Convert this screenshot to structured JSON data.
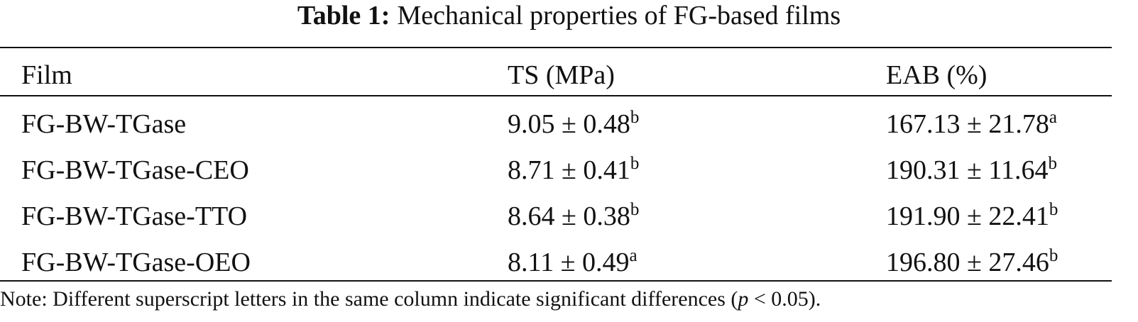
{
  "title": {
    "label": "Table 1:",
    "text": "Mechanical properties of FG-based films"
  },
  "table": {
    "header": [
      "Film",
      "TS (MPa)",
      "EAB (%)"
    ],
    "rows": [
      [
        {
          "text": "FG-BW-TGase"
        },
        {
          "text": "9.05 ± 0.48",
          "sup": "b"
        },
        {
          "text": "167.13 ± 21.78",
          "sup": "a"
        }
      ],
      [
        {
          "text": "FG-BW-TGase-CEO"
        },
        {
          "text": "8.71 ± 0.41",
          "sup": "b"
        },
        {
          "text": "190.31 ± 11.64",
          "sup": "b"
        }
      ],
      [
        {
          "text": "FG-BW-TGase-TTO"
        },
        {
          "text": "8.64 ± 0.38",
          "sup": "b"
        },
        {
          "text": "191.90 ± 22.41",
          "sup": "b"
        }
      ],
      [
        {
          "text": "FG-BW-TGase-OEO"
        },
        {
          "text": "8.11 ± 0.49",
          "sup": "a"
        },
        {
          "text": "196.80 ± 27.46",
          "sup": "b"
        }
      ]
    ]
  },
  "note": {
    "before": "Note: Different superscript letters in the same column indicate significant differences (",
    "italic": "p",
    "after": " < 0.05)."
  }
}
